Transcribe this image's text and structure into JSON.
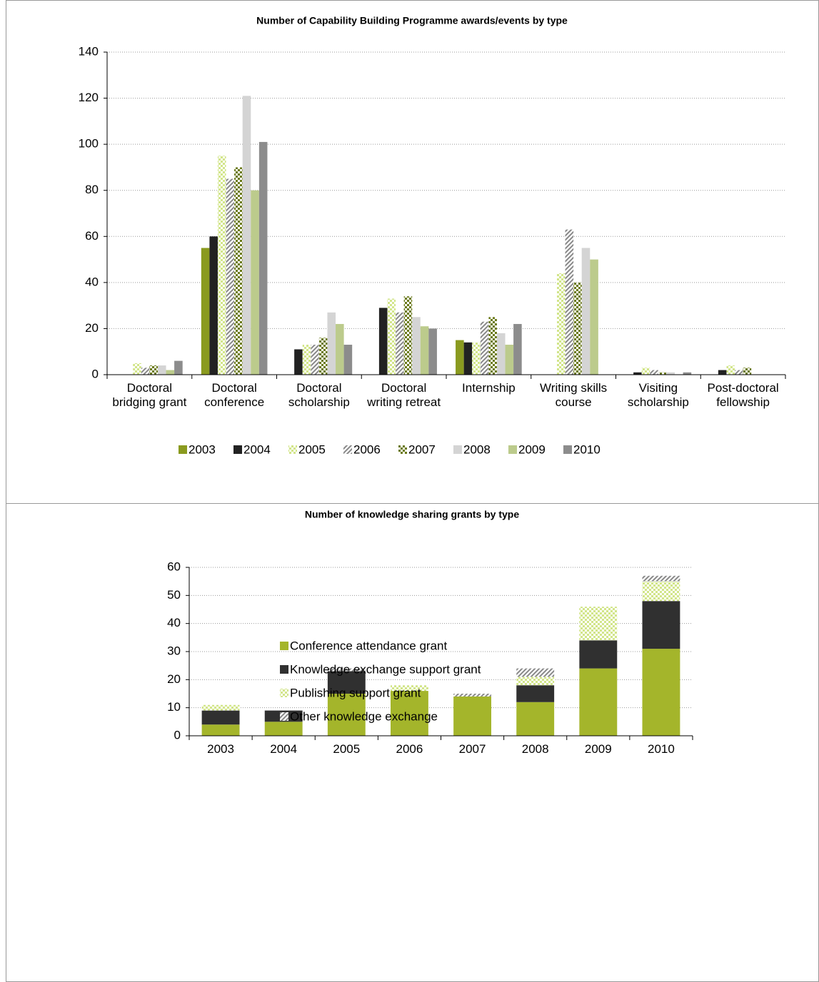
{
  "chart_data": [
    {
      "type": "bar",
      "title": "Number of Capability Building Programme awards/events by type",
      "categories": [
        "Doctoral bridging grant",
        "Doctoral conference",
        "Doctoral scholarship",
        "Doctoral writing retreat",
        "Internship",
        "Writing skills course",
        "Visiting scholarship",
        "Post-doctoral fellowship"
      ],
      "series": [
        {
          "name": "2003",
          "color": "#8a9a1f",
          "values": [
            0,
            55,
            0,
            0,
            15,
            0,
            0,
            0
          ]
        },
        {
          "name": "2004",
          "color": "#222222",
          "values": [
            0,
            60,
            11,
            29,
            14,
            0,
            1,
            2
          ]
        },
        {
          "name": "2005",
          "color": "#d2e58a",
          "pattern": "checker",
          "values": [
            5,
            95,
            13,
            33,
            14,
            44,
            3,
            4
          ]
        },
        {
          "name": "2006",
          "color": "#888888",
          "pattern": "diagonal",
          "values": [
            3,
            85,
            13,
            27,
            23,
            63,
            2,
            2
          ]
        },
        {
          "name": "2007",
          "color": "#6b7a1a",
          "pattern": "checker",
          "values": [
            4,
            90,
            16,
            34,
            25,
            40,
            1,
            3
          ]
        },
        {
          "name": "2008",
          "color": "#d4d4d4",
          "values": [
            4,
            121,
            27,
            25,
            18,
            55,
            1,
            0
          ]
        },
        {
          "name": "2009",
          "color": "#bccb8c",
          "values": [
            2,
            80,
            22,
            21,
            13,
            50,
            0,
            0
          ]
        },
        {
          "name": "2010",
          "color": "#8c8c8c",
          "values": [
            6,
            101,
            13,
            20,
            22,
            0,
            1,
            0
          ]
        }
      ],
      "ylim": [
        0,
        140
      ],
      "yticks": [
        0,
        20,
        40,
        60,
        80,
        100,
        120,
        140
      ],
      "grid": true,
      "legend": "bottom"
    },
    {
      "type": "stacked-bar",
      "title": "Number of knowledge sharing grants by type",
      "categories": [
        "2003",
        "2004",
        "2005",
        "2006",
        "2007",
        "2008",
        "2009",
        "2010"
      ],
      "series": [
        {
          "name": "Conference attendance grant",
          "color": "#a4b52b",
          "values": [
            4,
            5,
            15,
            16,
            14,
            12,
            24,
            31
          ]
        },
        {
          "name": "Knowledge exchange support grant",
          "color": "#303030",
          "values": [
            5,
            4,
            8,
            0,
            0,
            6,
            10,
            17
          ]
        },
        {
          "name": "Publishing support grant",
          "color": "#d2e58a",
          "pattern": "checker",
          "values": [
            2,
            0,
            0,
            2,
            0,
            3,
            12,
            7
          ]
        },
        {
          "name": "Other knowledge exchange",
          "color": "#888888",
          "pattern": "diagonal",
          "values": [
            0,
            0,
            1,
            0,
            1,
            3,
            0,
            2
          ]
        }
      ],
      "ylim": [
        0,
        60
      ],
      "yticks": [
        0,
        10,
        20,
        30,
        40,
        50,
        60
      ],
      "grid": true,
      "legend": "bottom"
    }
  ]
}
